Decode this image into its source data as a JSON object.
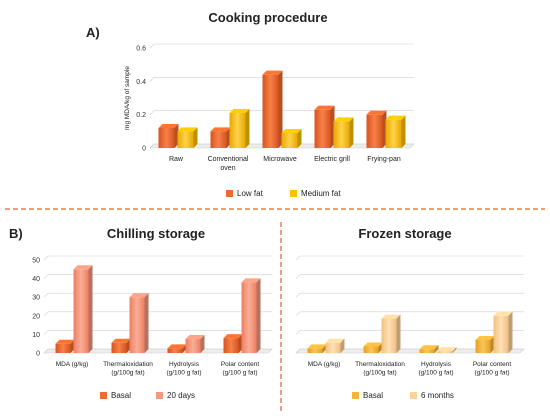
{
  "colors": {
    "low_fat": "#F26B2E",
    "medium_fat": "#FFC000",
    "basal_chill": "#F26B2E",
    "days20": "#F4987F",
    "basal_frozen": "#F4B53A",
    "months6": "#FAD19A",
    "divider": "#F29E7A",
    "grid": "#CFCFCF"
  },
  "panels": {
    "a_label": "A)",
    "b_label": "B)"
  },
  "chart_data": [
    {
      "type": "bar",
      "title": "Cooking procedure",
      "ylabel": "mg MDA/kg of sample",
      "xlabel": "",
      "ylim": [
        0,
        0.6
      ],
      "yticks": [
        "0",
        "0.2",
        "0.4",
        "0.6"
      ],
      "categories": [
        "Raw",
        "Conventional oven",
        "Microwave",
        "Electric grill",
        "Frying-pan"
      ],
      "category_lines": [
        [
          "Raw"
        ],
        [
          "Conventional",
          "oven"
        ],
        [
          "Microwave"
        ],
        [
          "Electric grill"
        ],
        [
          "Frying-pan"
        ]
      ],
      "series": [
        {
          "name": "Low fat",
          "values": [
            0.12,
            0.1,
            0.44,
            0.23,
            0.2
          ]
        },
        {
          "name": "Medium fat",
          "values": [
            0.1,
            0.21,
            0.09,
            0.16,
            0.17
          ]
        }
      ],
      "legend": "bottom",
      "grid": true
    },
    {
      "type": "bar",
      "title": "Chilling storage",
      "xlabel": "",
      "ylabel": "",
      "ylim": [
        0,
        50
      ],
      "yticks": [
        "0",
        "10",
        "20",
        "30",
        "40",
        "50"
      ],
      "categories": [
        "MDA (g/kg)",
        "Thermaloxidation (g/100g fat)",
        "Hydrolysis (g/100 g fat)",
        "Polar content (g/100 g fat)"
      ],
      "category_lines": [
        [
          "MDA (g/kg)"
        ],
        [
          "Thermaloxidation",
          "(g/100g fat)"
        ],
        [
          "Hydrolysis",
          "(g/100 g fat)"
        ],
        [
          "Polar content",
          "(g/100 g fat)"
        ]
      ],
      "series": [
        {
          "name": "Basal",
          "values": [
            5,
            5.5,
            2.5,
            8
          ]
        },
        {
          "name": "20 days",
          "values": [
            45,
            30,
            7.5,
            38
          ]
        }
      ],
      "legend": "bottom",
      "grid": true
    },
    {
      "type": "bar",
      "title": "Frozen storage",
      "xlabel": "",
      "ylabel": "",
      "ylim": [
        0,
        50
      ],
      "categories": [
        "MDA (g/kg)",
        "Thermaloxidation (g/100g fat)",
        "Hydrolysis (g/100 g fat)",
        "Polar content (g/100 g fat)"
      ],
      "category_lines": [
        [
          "MDA (g/kg)"
        ],
        [
          "Thermaloxidation",
          "(g/100g fat)"
        ],
        [
          "Hydrolysis",
          "(g/100 g fat)"
        ],
        [
          "Polar content",
          "(g/100 g fat)"
        ]
      ],
      "series": [
        {
          "name": "Basal",
          "values": [
            2.5,
            3.5,
            2,
            7
          ]
        },
        {
          "name": "6 months",
          "values": [
            5.5,
            18.5,
            1,
            20
          ]
        }
      ],
      "legend": "bottom",
      "grid": true
    }
  ]
}
